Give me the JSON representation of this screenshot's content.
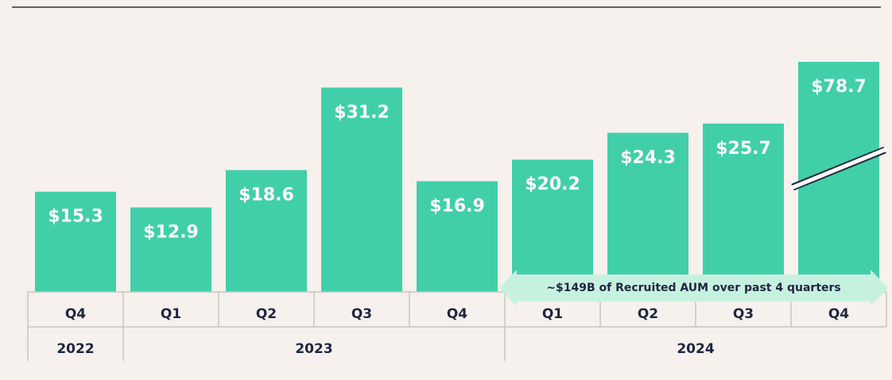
{
  "chart_data": {
    "type": "bar",
    "categories": [
      "Q4",
      "Q1",
      "Q2",
      "Q3",
      "Q4",
      "Q1",
      "Q2",
      "Q3",
      "Q4"
    ],
    "values": [
      15.3,
      12.9,
      18.6,
      31.2,
      16.9,
      20.2,
      24.3,
      25.7,
      78.7
    ],
    "value_labels": [
      "$15.3",
      "$12.9",
      "$18.6",
      "$31.2",
      "$16.9",
      "$20.2",
      "$24.3",
      "$25.7",
      "$78.7"
    ],
    "groups": [
      {
        "label": "2022",
        "size": 1
      },
      {
        "label": "2023",
        "size": 4
      },
      {
        "label": "2024",
        "size": 4
      }
    ],
    "annotation": "~$149B of Recruited AUM over past 4 quarters",
    "color": "#41cfa9",
    "ylim": [
      0,
      35
    ]
  }
}
